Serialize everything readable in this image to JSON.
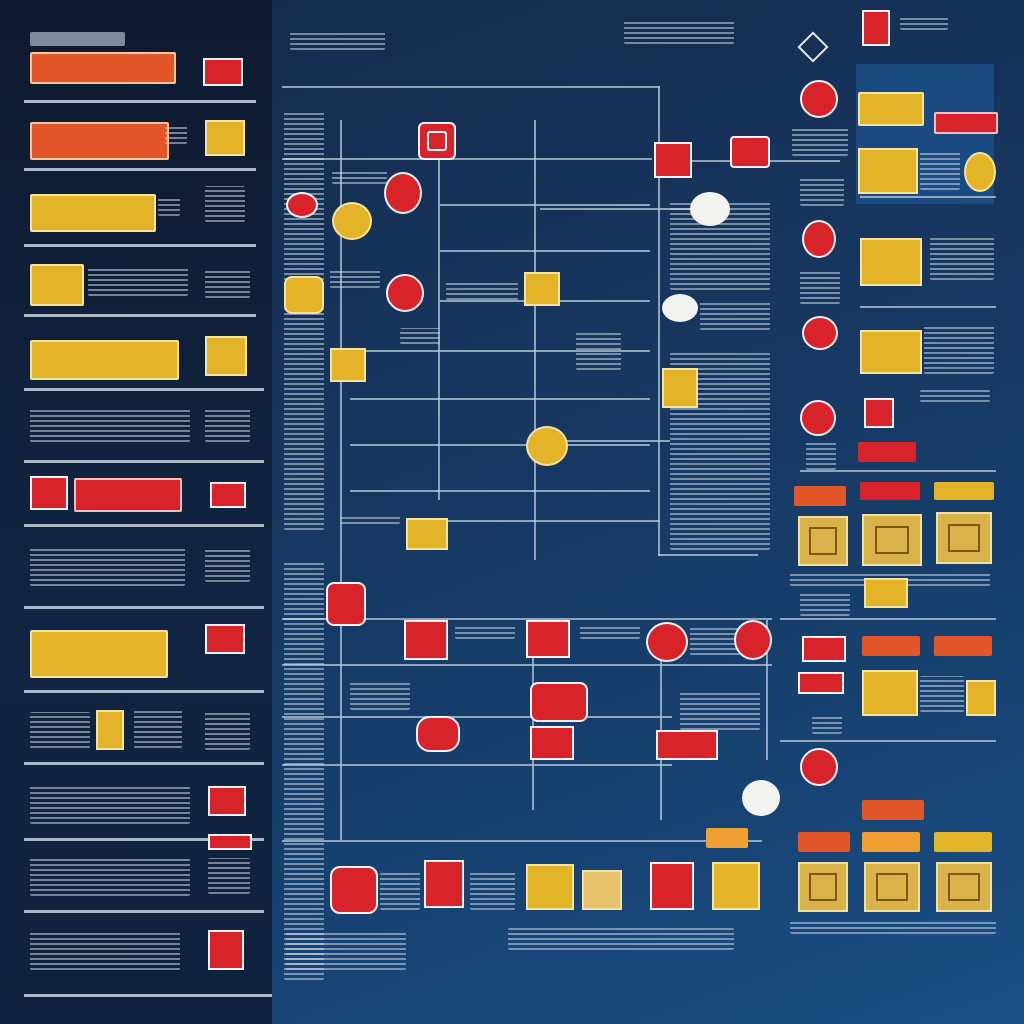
{
  "colors": {
    "background": "#17345c",
    "panel": "#0f213c",
    "red": "#d8232a",
    "gold": "#e3b328",
    "orange": "#e2572a",
    "line": "#b8c8da"
  },
  "icons": [
    "diamond-icon",
    "red-square-icon",
    "gold-square-icon",
    "red-circle-icon",
    "gold-circle-icon",
    "white-dot-icon"
  ]
}
